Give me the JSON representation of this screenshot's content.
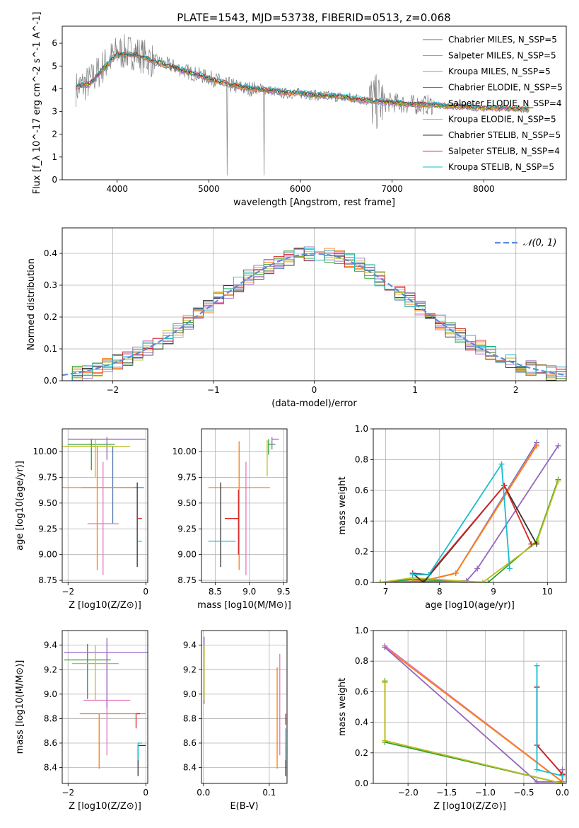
{
  "figure": {
    "title": "PLATE=1543, MJD=53738, FIBERID=0513, z=0.068"
  },
  "series_names": [
    "Chabrier MILES, N_SSP=5",
    "Salpeter MILES, N_SSP=5",
    "Kroupa MILES, N_SSP=5",
    "Chabrier ELODIE, N_SSP=5",
    "Salpeter ELODIE, N_SSP=4",
    "Kroupa ELODIE, N_SSP=5",
    "Chabrier STELIB, N_SSP=5",
    "Salpeter STELIB, N_SSP=4",
    "Kroupa STELIB, N_SSP=5"
  ],
  "series_colors": [
    "#4c72b0",
    "#e377c2",
    "#ff7f0e",
    "#2ca02c",
    "#9467bd",
    "#bcbd22",
    "#333333",
    "#d62728",
    "#17becf"
  ],
  "chart_data": [
    {
      "id": "spectrum",
      "type": "line",
      "title": "PLATE=1543, MJD=53738, FIBERID=0513, z=0.068",
      "xlabel": "wavelength [Angstrom, rest frame]",
      "ylabel": "Flux [f_λ 10^-17 erg cm^-2 s^-1 A^-1]",
      "xlim": [
        3400,
        8900
      ],
      "ylim": [
        0,
        6.75
      ],
      "xticks": [
        "4000",
        "5000",
        "6000",
        "7000",
        "8000"
      ],
      "yticks": [
        "0",
        "1",
        "2",
        "3",
        "4",
        "5",
        "6"
      ],
      "grid": false,
      "legend": "top-right",
      "data_x": [
        3550,
        3700,
        3850,
        4000,
        4200,
        4400,
        4600,
        4800,
        5000,
        5200,
        5400,
        5600,
        5800,
        6000,
        6200,
        6400,
        6600,
        6800,
        7000,
        7200,
        7400,
        7600,
        7800,
        8000,
        8200,
        8500
      ],
      "data_y": [
        4.0,
        4.3,
        5.0,
        5.6,
        5.6,
        5.2,
        5.0,
        4.7,
        4.5,
        4.2,
        4.0,
        4.0,
        3.8,
        3.8,
        3.7,
        3.65,
        3.6,
        3.4,
        3.4,
        3.3,
        3.3,
        3.25,
        3.2,
        3.15,
        3.1,
        3.1
      ],
      "model_x": [
        3550,
        3700,
        3850,
        4000,
        4200,
        4400,
        4600,
        4800,
        5000,
        5200,
        5400,
        5600,
        5800,
        6000,
        6200,
        6400,
        6600,
        6800,
        7000,
        7200,
        7400,
        7600,
        7800,
        8000,
        8200,
        8500
      ],
      "model_y": [
        4.1,
        4.2,
        4.9,
        5.5,
        5.5,
        5.2,
        4.95,
        4.7,
        4.45,
        4.2,
        4.05,
        3.95,
        3.85,
        3.8,
        3.7,
        3.65,
        3.55,
        3.45,
        3.4,
        3.3,
        3.3,
        3.25,
        3.2,
        3.15,
        3.15,
        3.1
      ]
    },
    {
      "id": "residuals",
      "type": "line",
      "xlabel": "(data-model)/error",
      "ylabel": "Normed distribution",
      "xlim": [
        -2.5,
        2.5
      ],
      "ylim": [
        0,
        0.48
      ],
      "xticks": [
        "−2",
        "−1",
        "0",
        "1",
        "2"
      ],
      "yticks": [
        "0.0",
        "0.1",
        "0.2",
        "0.3",
        "0.4"
      ],
      "grid": true,
      "legend": "top-right",
      "gaussian_label": "𝒩(0, 1)",
      "bin_width": 0.1
    },
    {
      "id": "age_vs_Z",
      "type": "scatter",
      "xlabel": "Z [log10(Z/Z⊙)]",
      "ylabel": "age [log10(age/yr)]",
      "xlim": [
        -2.15,
        0.05
      ],
      "ylim": [
        8.73,
        10.22
      ],
      "xticks": [
        "−2",
        "0"
      ],
      "yticks": [
        "8.75",
        "9.00",
        "9.25",
        "9.50",
        "9.75",
        "10.00"
      ],
      "grid": true,
      "points": [
        {
          "s": 0,
          "x": -0.85,
          "y": 9.65,
          "xerr": [
            0.8,
            0.8
          ],
          "yerr": [
            0.35,
            0.4
          ]
        },
        {
          "s": 1,
          "x": -1.1,
          "y": 9.3,
          "xerr": [
            0.4,
            0.4
          ],
          "yerr": [
            0.5,
            0.6
          ]
        },
        {
          "s": 2,
          "x": -1.25,
          "y": 9.65,
          "xerr": [
            0.95,
            0.95
          ],
          "yerr": [
            0.8,
            0.4
          ]
        },
        {
          "s": 3,
          "x": -1.4,
          "y": 10.07,
          "xerr": [
            0.6,
            0.6
          ],
          "yerr": [
            0.25,
            0.05
          ]
        },
        {
          "s": 4,
          "x": -1.0,
          "y": 10.12,
          "xerr": [
            1.0,
            1.0
          ],
          "yerr": [
            0.2,
            0.02
          ]
        },
        {
          "s": 5,
          "x": -1.3,
          "y": 10.05,
          "xerr": [
            0.9,
            0.9
          ],
          "yerr": [
            0.3,
            0.07
          ]
        },
        {
          "s": 6,
          "x": -0.22,
          "y": 9.3,
          "xerr": [
            0.0,
            0.0
          ],
          "yerr": [
            0.42,
            0.4
          ]
        },
        {
          "s": 7,
          "x": -0.2,
          "y": 9.35,
          "xerr": [
            0.0,
            0.1
          ],
          "yerr": [
            0.0,
            0.0
          ]
        },
        {
          "s": 8,
          "x": -0.2,
          "y": 9.13,
          "xerr": [
            0.0,
            0.1
          ],
          "yerr": [
            0.0,
            0.0
          ]
        }
      ]
    },
    {
      "id": "age_vs_mass",
      "type": "scatter",
      "xlabel": "mass [log10(M/M⊙)]",
      "xlim": [
        8.3,
        9.55
      ],
      "ylim": [
        8.73,
        10.22
      ],
      "xticks": [
        "8.5",
        "9.0",
        "9.5"
      ],
      "yticks": [
        "8.75",
        "9.00",
        "9.25",
        "9.50",
        "9.75",
        "10.00"
      ],
      "grid": true,
      "points": [
        {
          "s": 0,
          "x": 8.6,
          "y": 9.13,
          "xerr": [
            0.0,
            0.0
          ],
          "yerr": [
            0.0,
            0.0
          ]
        },
        {
          "s": 1,
          "x": 8.95,
          "y": 9.3,
          "xerr": [
            0.0,
            0.0
          ],
          "yerr": [
            0.5,
            0.6
          ]
        },
        {
          "s": 2,
          "x": 8.85,
          "y": 9.65,
          "xerr": [
            0.45,
            0.45
          ],
          "yerr": [
            0.8,
            0.45
          ]
        },
        {
          "s": 3,
          "x": 9.28,
          "y": 10.07,
          "xerr": [
            0.0,
            0.1
          ],
          "yerr": [
            0.1,
            0.05
          ]
        },
        {
          "s": 4,
          "x": 9.33,
          "y": 10.12,
          "xerr": [
            0.0,
            0.1
          ],
          "yerr": [
            0.1,
            0.02
          ]
        },
        {
          "s": 5,
          "x": 9.26,
          "y": 10.06,
          "xerr": [
            0.0,
            0.0
          ],
          "yerr": [
            0.3,
            0.05
          ]
        },
        {
          "s": 6,
          "x": 8.58,
          "y": 9.3,
          "xerr": [
            0.0,
            0.0
          ],
          "yerr": [
            0.42,
            0.4
          ]
        },
        {
          "s": 7,
          "x": 8.84,
          "y": 9.35,
          "xerr": [
            0.2,
            0.0
          ],
          "yerr": [
            0.35,
            0.28
          ]
        },
        {
          "s": 8,
          "x": 8.6,
          "y": 9.13,
          "xerr": [
            0.2,
            0.2
          ],
          "yerr": [
            0.0,
            0.0
          ]
        }
      ]
    },
    {
      "id": "weights_vs_age",
      "type": "line",
      "xlabel": "age [log10(age/yr)]",
      "ylabel": "mass weight",
      "xlim": [
        6.77,
        10.35
      ],
      "ylim": [
        0.0,
        1.0
      ],
      "xticks": [
        "7",
        "8",
        "9",
        "10"
      ],
      "yticks": [
        "0.0",
        "0.2",
        "0.4",
        "0.6",
        "0.8",
        "1.0"
      ],
      "grid": true,
      "series": [
        {
          "s": 0,
          "x": [
            6.9,
            7.7,
            8.3,
            9.8
          ],
          "y": [
            0.0,
            0.01,
            0.06,
            0.91
          ]
        },
        {
          "s": 1,
          "x": [
            6.9,
            7.7,
            8.3,
            9.8
          ],
          "y": [
            0.0,
            0.01,
            0.06,
            0.9
          ]
        },
        {
          "s": 2,
          "x": [
            6.9,
            7.7,
            8.3,
            9.8
          ],
          "y": [
            0.0,
            0.01,
            0.06,
            0.89
          ]
        },
        {
          "s": 3,
          "x": [
            6.9,
            7.5,
            8.9,
            9.8,
            10.2
          ],
          "y": [
            0.0,
            0.02,
            0.0,
            0.27,
            0.67
          ]
        },
        {
          "s": 4,
          "x": [
            6.9,
            8.5,
            8.7,
            10.2
          ],
          "y": [
            0.0,
            0.01,
            0.09,
            0.89
          ]
        },
        {
          "s": 5,
          "x": [
            6.9,
            7.5,
            8.8,
            9.8,
            10.2
          ],
          "y": [
            0.0,
            0.03,
            0.0,
            0.26,
            0.66
          ]
        },
        {
          "s": 6,
          "x": [
            7.5,
            7.7,
            9.2,
            9.8
          ],
          "y": [
            0.06,
            0.0,
            0.63,
            0.25
          ]
        },
        {
          "s": 7,
          "x": [
            7.5,
            7.8,
            9.2,
            9.7
          ],
          "y": [
            0.06,
            0.05,
            0.63,
            0.25
          ]
        },
        {
          "s": 8,
          "x": [
            7.5,
            7.8,
            9.15,
            9.3
          ],
          "y": [
            0.05,
            0.05,
            0.77,
            0.09
          ]
        }
      ]
    },
    {
      "id": "mass_vs_Z",
      "type": "scatter",
      "xlabel": "Z [log10(Z/Z⊙)]",
      "ylabel": "mass [log10(M/M⊙)]",
      "xlim": [
        -2.15,
        0.05
      ],
      "ylim": [
        8.27,
        9.52
      ],
      "xticks": [
        "−2",
        "0"
      ],
      "yticks": [
        "8.4",
        "8.6",
        "8.8",
        "9.0",
        "9.2",
        "9.4"
      ],
      "grid": true,
      "points": [
        {
          "s": 0,
          "x": -1.6,
          "y": 8.62,
          "xerr": [
            0.0,
            0.0
          ],
          "yerr": [
            0.0,
            0.0
          ]
        },
        {
          "s": 1,
          "x": -1.0,
          "y": 8.95,
          "xerr": [
            0.6,
            0.6
          ],
          "yerr": [
            0.45,
            0.38
          ]
        },
        {
          "s": 2,
          "x": -1.2,
          "y": 8.84,
          "xerr": [
            0.5,
            1.2
          ],
          "yerr": [
            0.45,
            0.0
          ]
        },
        {
          "s": 3,
          "x": -1.5,
          "y": 9.28,
          "xerr": [
            0.6,
            0.6
          ],
          "yerr": [
            0.32,
            0.13
          ]
        },
        {
          "s": 4,
          "x": -1.0,
          "y": 9.34,
          "xerr": [
            1.1,
            1.1
          ],
          "yerr": [
            0.45,
            0.12
          ]
        },
        {
          "s": 5,
          "x": -1.3,
          "y": 9.25,
          "xerr": [
            0.6,
            0.6
          ],
          "yerr": [
            0.3,
            0.15
          ]
        },
        {
          "s": 6,
          "x": -0.2,
          "y": 8.58,
          "xerr": [
            0.0,
            0.2
          ],
          "yerr": [
            0.25,
            0.0
          ]
        },
        {
          "s": 7,
          "x": -0.25,
          "y": 8.84,
          "xerr": [
            0.0,
            0.1
          ],
          "yerr": [
            0.12,
            0.0
          ]
        },
        {
          "s": 8,
          "x": -0.2,
          "y": 8.6,
          "xerr": [
            0.0,
            0.1
          ],
          "yerr": [
            0.14,
            0.0
          ]
        }
      ]
    },
    {
      "id": "mass_vs_ebv",
      "type": "scatter",
      "xlabel": "E(B-V)",
      "xlim": [
        -0.003,
        0.127
      ],
      "ylim": [
        8.27,
        9.52
      ],
      "xticks": [
        "0.0",
        "0.1"
      ],
      "yticks": [
        "8.4",
        "8.6",
        "8.8",
        "9.0",
        "9.2",
        "9.4"
      ],
      "grid": true,
      "points": [
        {
          "s": 0,
          "x": 0.118,
          "y": 8.62,
          "xerr": [
            0.0,
            0.0
          ],
          "yerr": [
            0.0,
            0.0
          ]
        },
        {
          "s": 1,
          "x": 0.116,
          "y": 8.95,
          "xerr": [
            0.0,
            0.0
          ],
          "yerr": [
            0.45,
            0.38
          ]
        },
        {
          "s": 2,
          "x": 0.112,
          "y": 8.84,
          "xerr": [
            0.0,
            0.0
          ],
          "yerr": [
            0.45,
            0.38
          ]
        },
        {
          "s": 3,
          "x": 0.001,
          "y": 9.3,
          "xerr": [
            0.0,
            0.0
          ],
          "yerr": [
            0.0,
            0.1
          ]
        },
        {
          "s": 4,
          "x": 0.001,
          "y": 9.37,
          "xerr": [
            0.0,
            0.0
          ],
          "yerr": [
            0.45,
            0.1
          ]
        },
        {
          "s": 5,
          "x": 0.001,
          "y": 9.25,
          "xerr": [
            0.0,
            0.0
          ],
          "yerr": [
            0.3,
            0.15
          ]
        },
        {
          "s": 6,
          "x": 0.125,
          "y": 8.58,
          "xerr": [
            0.0,
            0.0
          ],
          "yerr": [
            0.25,
            0.0
          ]
        },
        {
          "s": 7,
          "x": 0.125,
          "y": 8.75,
          "xerr": [
            0.0,
            0.0
          ],
          "yerr": [
            0.0,
            0.09
          ]
        },
        {
          "s": 8,
          "x": 0.125,
          "y": 8.6,
          "xerr": [
            0.0,
            0.0
          ],
          "yerr": [
            0.14,
            0.12
          ]
        }
      ]
    },
    {
      "id": "weights_vs_Z",
      "type": "line",
      "xlabel": "Z [log10(Z/Z⊙)]",
      "ylabel": "mass weight",
      "xlim": [
        -2.45,
        0.05
      ],
      "ylim": [
        0.0,
        1.0
      ],
      "xticks": [
        "−2.0",
        "−1.5",
        "−1.0",
        "−0.5",
        "0.0"
      ],
      "yticks": [
        "0.0",
        "0.2",
        "0.4",
        "0.6",
        "0.8",
        "1.0"
      ],
      "grid": true,
      "series": [
        {
          "s": 0,
          "x": [
            -2.3,
            0.0,
            0.0
          ],
          "y": [
            0.9,
            0.01,
            0.06
          ]
        },
        {
          "s": 1,
          "x": [
            -2.3,
            0.0,
            0.0
          ],
          "y": [
            0.9,
            0.01,
            0.06
          ]
        },
        {
          "s": 2,
          "x": [
            -2.3,
            0.0,
            0.0
          ],
          "y": [
            0.89,
            0.01,
            0.06
          ]
        },
        {
          "s": 3,
          "x": [
            -2.3,
            -2.3,
            0.0
          ],
          "y": [
            0.67,
            0.27,
            0.0
          ]
        },
        {
          "s": 4,
          "x": [
            -2.3,
            -0.33,
            0.0,
            0.0
          ],
          "y": [
            0.89,
            0.01,
            0.01,
            0.09
          ]
        },
        {
          "s": 5,
          "x": [
            -2.3,
            -2.3,
            0.0
          ],
          "y": [
            0.66,
            0.28,
            0.0
          ]
        },
        {
          "s": 6,
          "x": [
            -0.33,
            -0.33,
            0.0
          ],
          "y": [
            0.63,
            0.25,
            0.06
          ]
        },
        {
          "s": 7,
          "x": [
            -0.33,
            -0.33,
            0.0,
            0.0
          ],
          "y": [
            0.63,
            0.25,
            0.06,
            0.06
          ]
        },
        {
          "s": 8,
          "x": [
            -0.33,
            -0.33,
            0.0,
            0.0
          ],
          "y": [
            0.77,
            0.09,
            0.05,
            0.05
          ]
        }
      ]
    }
  ]
}
